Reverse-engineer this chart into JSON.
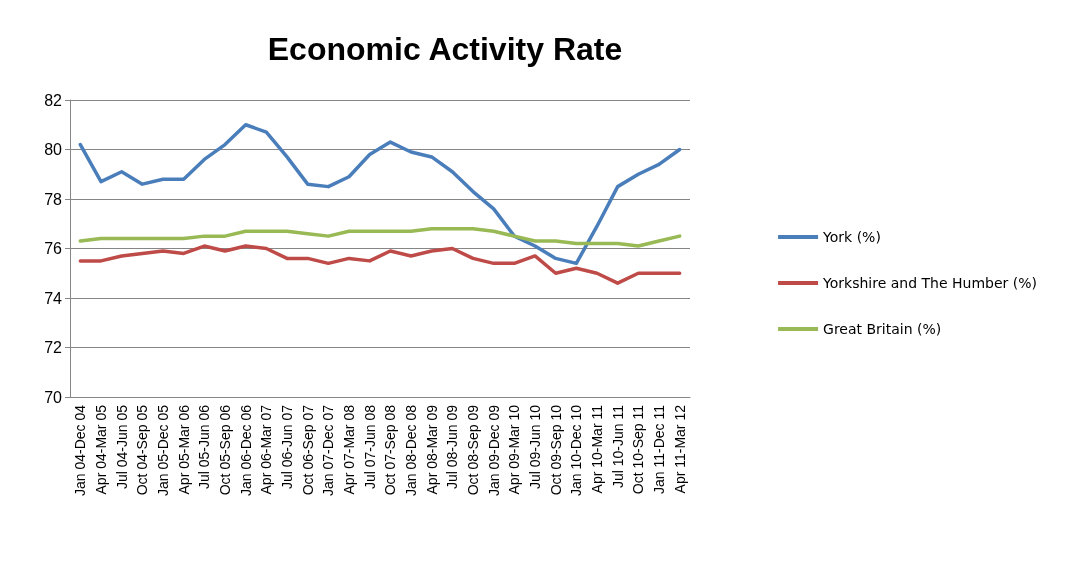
{
  "chart_data": {
    "type": "line",
    "title": "Economic Activity Rate",
    "categories": [
      "Jan 04-Dec 04",
      "Apr 04-Mar 05",
      "Jul 04-Jun 05",
      "Oct 04-Sep 05",
      "Jan 05-Dec 05",
      "Apr 05-Mar 06",
      "Jul 05-Jun 06",
      "Oct 05-Sep 06",
      "Jan 06-Dec 06",
      "Apr 06-Mar 07",
      "Jul 06-Jun 07",
      "Oct 06-Sep 07",
      "Jan 07-Dec 07",
      "Apr 07-Mar 08",
      "Jul 07-Jun 08",
      "Oct 07-Sep 08",
      "Jan 08-Dec 08",
      "Apr 08-Mar 09",
      "Jul 08-Jun 09",
      "Oct 08-Sep 09",
      "Jan 09-Dec 09",
      "Apr 09-Mar 10",
      "Jul 09-Jun 10",
      "Oct 09-Sep 10",
      "Jan 10-Dec 10",
      "Apr 10-Mar 11",
      "Jul 10-Jun 11",
      "Oct 10-Sep 11",
      "Jan 11-Dec 11",
      "Apr 11-Mar 12"
    ],
    "series": [
      {
        "name": "York (%)",
        "color": "#4a7ebb",
        "values": [
          80.2,
          78.7,
          79.1,
          78.6,
          78.8,
          78.8,
          79.6,
          80.2,
          81.0,
          80.7,
          79.7,
          78.6,
          78.5,
          78.9,
          79.8,
          80.3,
          79.9,
          79.7,
          79.1,
          78.3,
          77.6,
          76.5,
          76.1,
          75.6,
          75.4,
          76.9,
          78.5,
          79.0,
          79.4,
          80.0
        ]
      },
      {
        "name": "Yorkshire and The Humber (%)",
        "color": "#be4b48",
        "values": [
          75.5,
          75.5,
          75.7,
          75.8,
          75.9,
          75.8,
          76.1,
          75.9,
          76.1,
          76.0,
          75.6,
          75.6,
          75.4,
          75.6,
          75.5,
          75.9,
          75.7,
          75.9,
          76.0,
          75.6,
          75.4,
          75.4,
          75.7,
          75.0,
          75.2,
          75.0,
          74.6,
          75.0,
          75.0,
          75.0
        ]
      },
      {
        "name": "Great Britain (%)",
        "color": "#98b954",
        "values": [
          76.3,
          76.4,
          76.4,
          76.4,
          76.4,
          76.4,
          76.5,
          76.5,
          76.7,
          76.7,
          76.7,
          76.6,
          76.5,
          76.7,
          76.7,
          76.7,
          76.7,
          76.8,
          76.8,
          76.8,
          76.7,
          76.5,
          76.3,
          76.3,
          76.2,
          76.2,
          76.2,
          76.1,
          76.3,
          76.5
        ]
      }
    ],
    "ylim": [
      70,
      82
    ],
    "yticks": [
      70,
      72,
      74,
      76,
      78,
      80,
      82
    ],
    "grid": "y",
    "legend": "right",
    "marker": "none",
    "line_style": "solid"
  }
}
